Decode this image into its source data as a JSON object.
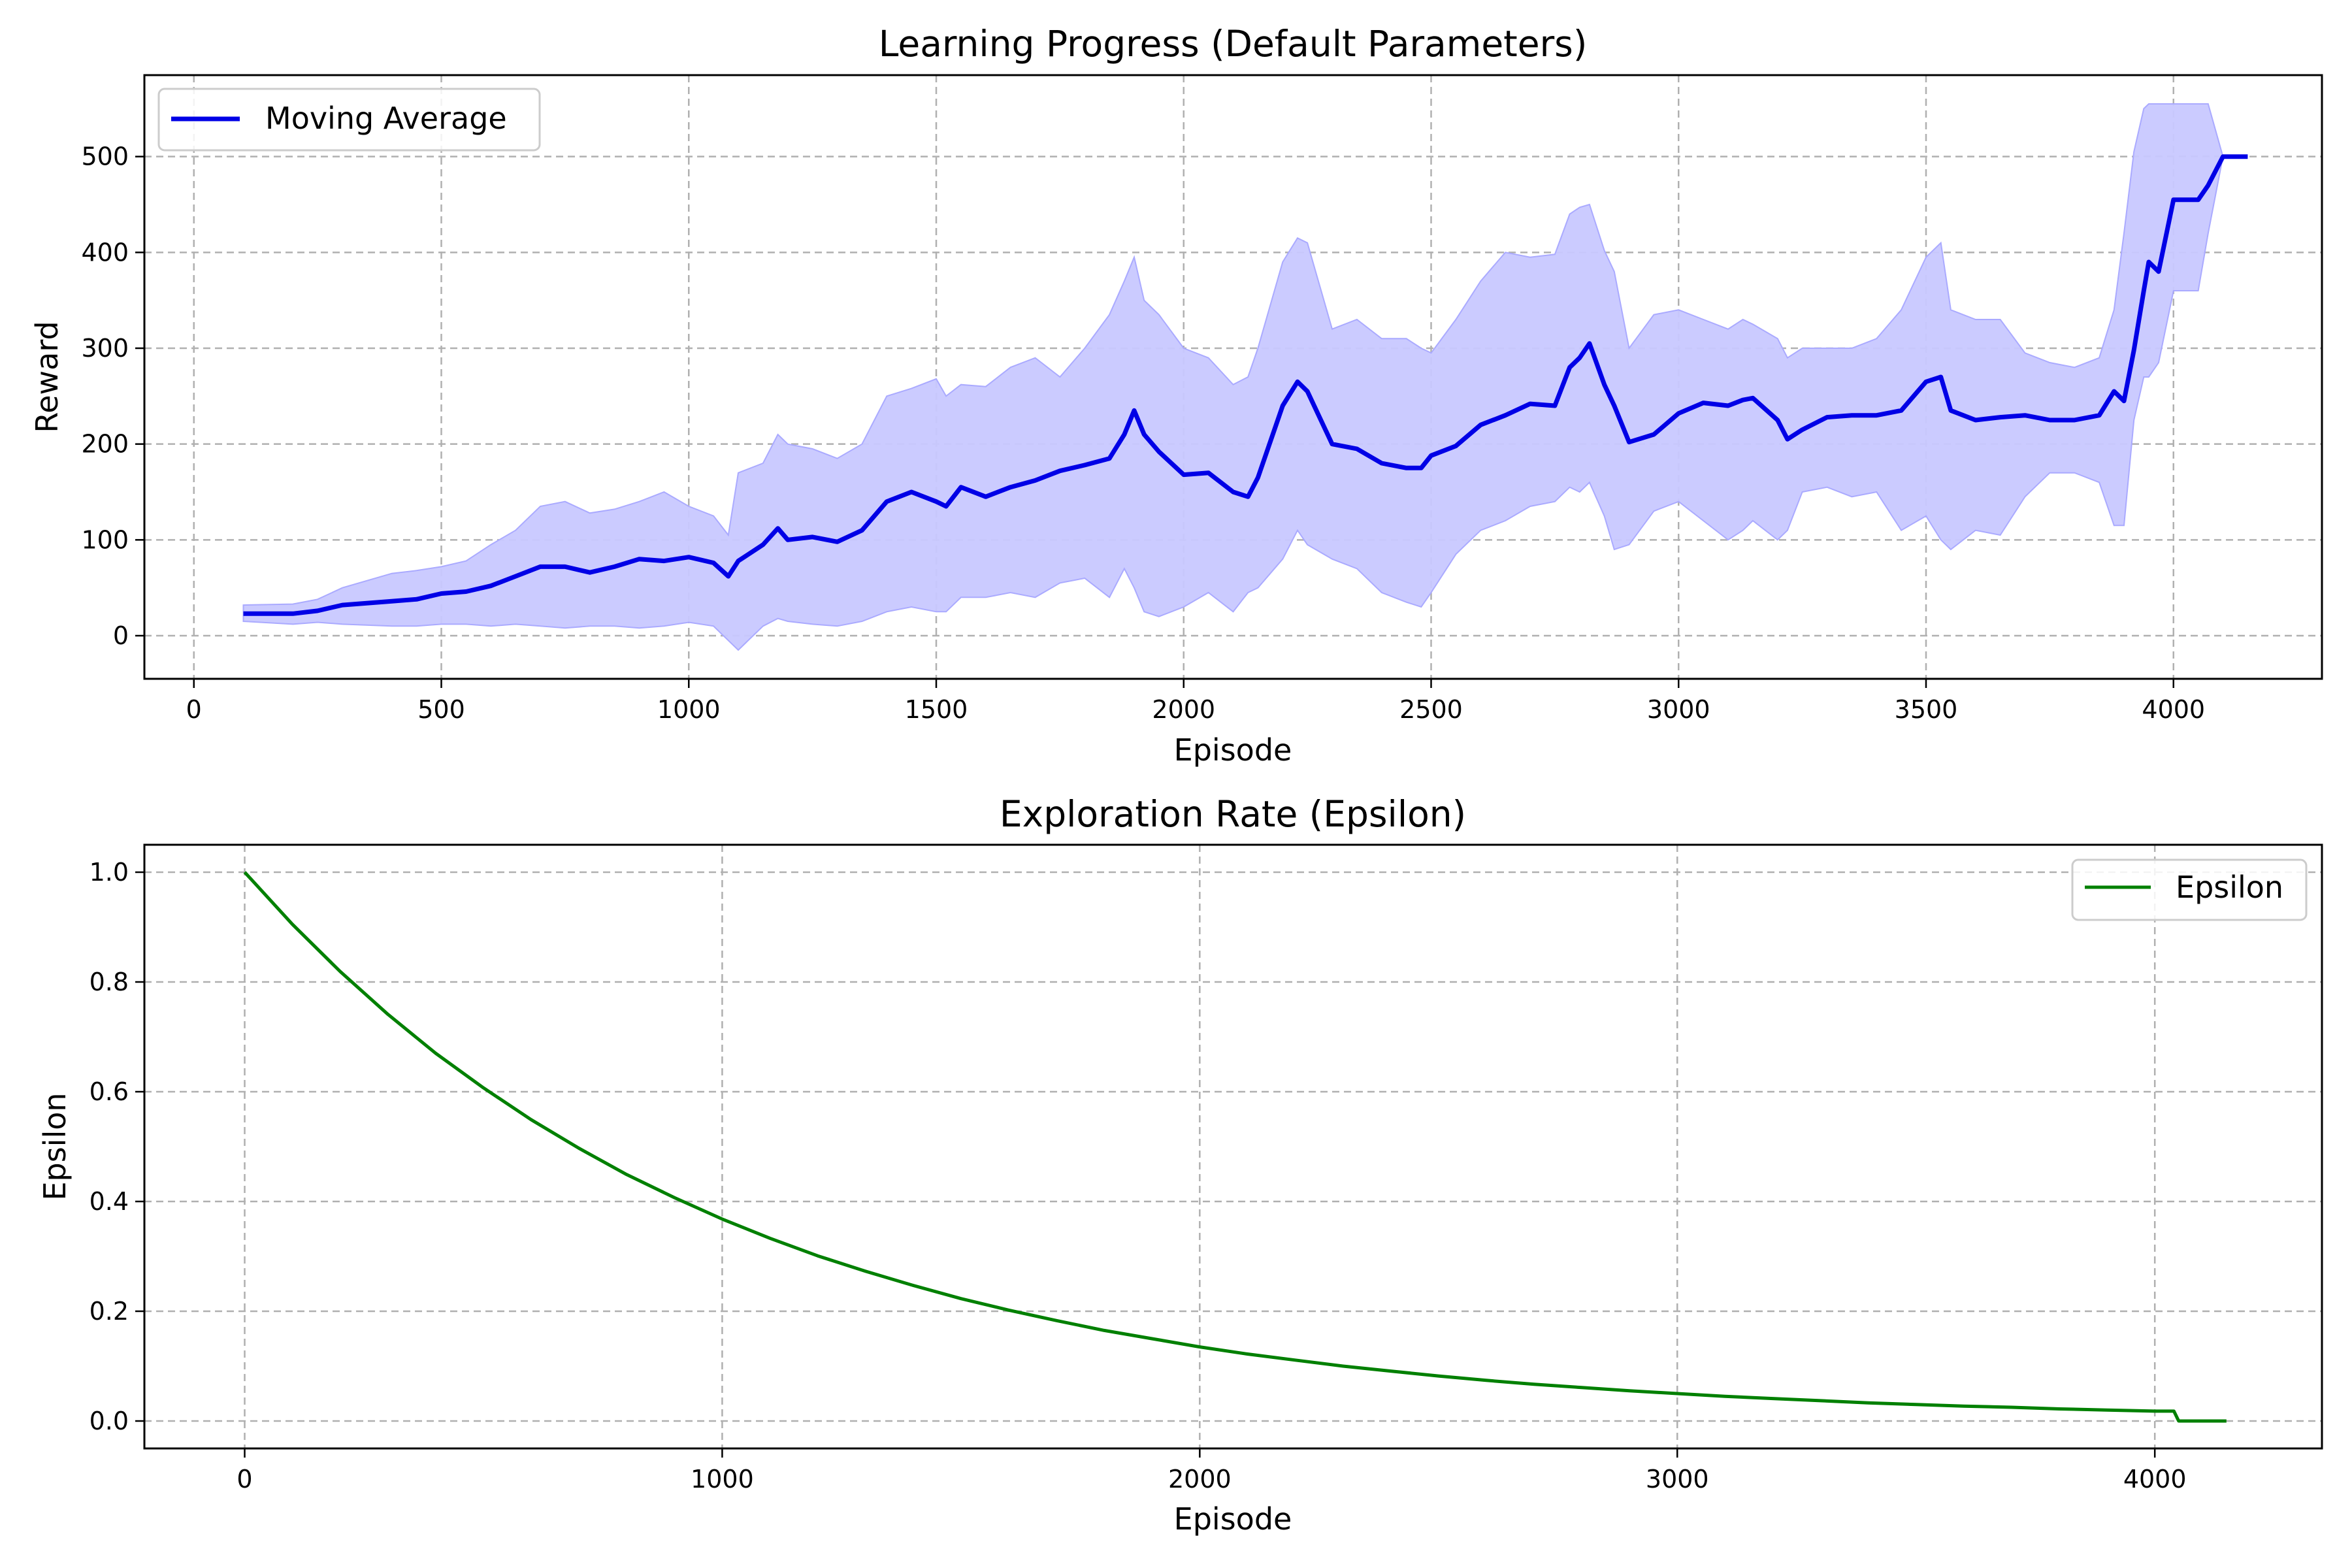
{
  "colors": {
    "reward_line": "#0000e6",
    "reward_band": "#c8c8ff",
    "reward_band_edge": "#aaaaff",
    "epsilon_line": "#008000",
    "grid": "#b0b0b0",
    "legend_border": "#cccccc"
  },
  "chart_data": [
    {
      "type": "line",
      "title": "Learning Progress (Default Parameters)",
      "xlabel": "Episode",
      "ylabel": "Reward",
      "xlim": [
        -100,
        4300
      ],
      "ylim": [
        -45,
        585
      ],
      "xticks": [
        0,
        500,
        1000,
        1500,
        2000,
        2500,
        3000,
        3500,
        4000
      ],
      "yticks": [
        0,
        100,
        200,
        300,
        400,
        500
      ],
      "xtick_labels": [
        "0",
        "500",
        "1000",
        "1500",
        "2000",
        "2500",
        "3000",
        "3500",
        "4000"
      ],
      "ytick_labels": [
        "0",
        "100",
        "200",
        "300",
        "400",
        "500"
      ],
      "grid": true,
      "legend": {
        "position": "top-left",
        "entries": [
          "Moving Average"
        ]
      },
      "series": [
        {
          "name": "Moving Average",
          "x": [
            100,
            200,
            250,
            300,
            400,
            450,
            500,
            550,
            600,
            650,
            700,
            750,
            800,
            850,
            900,
            950,
            1000,
            1050,
            1080,
            1100,
            1150,
            1180,
            1200,
            1250,
            1300,
            1350,
            1400,
            1450,
            1500,
            1520,
            1550,
            1600,
            1650,
            1700,
            1750,
            1800,
            1850,
            1880,
            1900,
            1920,
            1950,
            2000,
            2050,
            2100,
            2130,
            2150,
            2200,
            2230,
            2250,
            2300,
            2350,
            2400,
            2450,
            2480,
            2500,
            2550,
            2600,
            2650,
            2700,
            2750,
            2780,
            2800,
            2820,
            2850,
            2870,
            2900,
            2950,
            3000,
            3050,
            3100,
            3130,
            3150,
            3200,
            3220,
            3250,
            3300,
            3350,
            3400,
            3450,
            3500,
            3530,
            3550,
            3600,
            3650,
            3700,
            3750,
            3800,
            3850,
            3880,
            3900,
            3920,
            3940,
            3950,
            3970,
            4000,
            4050,
            4070,
            4100,
            4150
          ],
          "y": [
            23,
            23,
            26,
            32,
            36,
            38,
            44,
            46,
            52,
            62,
            72,
            72,
            66,
            72,
            80,
            78,
            82,
            76,
            62,
            78,
            95,
            112,
            100,
            103,
            98,
            110,
            140,
            150,
            140,
            135,
            155,
            145,
            155,
            162,
            172,
            178,
            185,
            210,
            235,
            210,
            192,
            168,
            170,
            150,
            145,
            165,
            240,
            265,
            255,
            200,
            195,
            180,
            175,
            175,
            188,
            198,
            220,
            230,
            242,
            240,
            280,
            290,
            305,
            262,
            240,
            202,
            210,
            232,
            243,
            240,
            246,
            248,
            225,
            205,
            215,
            228,
            230,
            230,
            235,
            265,
            270,
            235,
            225,
            228,
            230,
            225,
            225,
            230,
            255,
            245,
            298,
            360,
            390,
            380,
            455,
            455,
            470,
            500,
            500
          ],
          "lower": [
            15,
            12,
            14,
            12,
            10,
            10,
            12,
            12,
            10,
            12,
            10,
            8,
            10,
            10,
            8,
            10,
            14,
            10,
            -5,
            -15,
            10,
            18,
            15,
            12,
            10,
            15,
            25,
            30,
            25,
            25,
            40,
            40,
            45,
            40,
            55,
            60,
            40,
            70,
            50,
            25,
            20,
            30,
            45,
            25,
            45,
            50,
            80,
            110,
            95,
            80,
            70,
            45,
            35,
            30,
            45,
            85,
            110,
            120,
            135,
            140,
            155,
            150,
            160,
            125,
            90,
            95,
            130,
            140,
            120,
            100,
            110,
            120,
            100,
            110,
            150,
            155,
            145,
            150,
            110,
            125,
            100,
            90,
            110,
            105,
            145,
            170,
            170,
            160,
            115,
            115,
            225,
            270,
            270,
            285,
            360,
            360,
            420,
            500,
            500
          ],
          "upper": [
            32,
            33,
            38,
            50,
            65,
            68,
            72,
            78,
            95,
            110,
            135,
            140,
            128,
            132,
            140,
            150,
            135,
            125,
            105,
            170,
            180,
            210,
            200,
            195,
            185,
            200,
            250,
            258,
            268,
            250,
            262,
            260,
            280,
            290,
            270,
            300,
            335,
            370,
            395,
            350,
            335,
            300,
            290,
            262,
            270,
            300,
            390,
            415,
            410,
            320,
            330,
            310,
            310,
            300,
            295,
            330,
            370,
            400,
            395,
            398,
            440,
            447,
            450,
            402,
            380,
            300,
            335,
            340,
            330,
            320,
            330,
            325,
            310,
            290,
            300,
            300,
            300,
            310,
            340,
            395,
            410,
            340,
            330,
            330,
            295,
            285,
            280,
            290,
            340,
            420,
            505,
            550,
            555,
            555,
            555,
            555,
            555,
            500,
            500
          ]
        }
      ]
    },
    {
      "type": "line",
      "title": "Exploration Rate (Epsilon)",
      "xlabel": "Episode",
      "ylabel": "Epsilon",
      "xlim": [
        -210,
        4350
      ],
      "ylim": [
        -0.05,
        1.05
      ],
      "xticks": [
        0,
        1000,
        2000,
        3000,
        4000
      ],
      "yticks": [
        0.0,
        0.2,
        0.4,
        0.6,
        0.8,
        1.0
      ],
      "xtick_labels": [
        "0",
        "1000",
        "2000",
        "3000",
        "4000"
      ],
      "ytick_labels": [
        "0.0",
        "0.2",
        "0.4",
        "0.6",
        "0.8",
        "1.0"
      ],
      "grid": true,
      "legend": {
        "position": "top-right",
        "entries": [
          "Epsilon"
        ]
      },
      "series": [
        {
          "name": "Epsilon",
          "x": [
            0,
            100,
            200,
            300,
            400,
            500,
            600,
            700,
            800,
            900,
            1000,
            1100,
            1200,
            1300,
            1400,
            1500,
            1600,
            1700,
            1800,
            1900,
            2000,
            2100,
            2200,
            2300,
            2400,
            2500,
            2600,
            2700,
            2800,
            2900,
            3000,
            3100,
            3200,
            3300,
            3400,
            3500,
            3600,
            3700,
            3800,
            3900,
            4000,
            4040,
            4050,
            4100,
            4150
          ],
          "y": [
            1.0,
            0.905,
            0.819,
            0.741,
            0.67,
            0.607,
            0.549,
            0.497,
            0.449,
            0.407,
            0.368,
            0.333,
            0.301,
            0.273,
            0.247,
            0.223,
            0.202,
            0.183,
            0.165,
            0.15,
            0.135,
            0.122,
            0.111,
            0.1,
            0.091,
            0.082,
            0.074,
            0.067,
            0.061,
            0.055,
            0.05,
            0.045,
            0.041,
            0.037,
            0.033,
            0.03,
            0.027,
            0.025,
            0.022,
            0.02,
            0.018,
            0.018,
            0.0,
            0.0,
            0.0
          ]
        }
      ]
    }
  ]
}
